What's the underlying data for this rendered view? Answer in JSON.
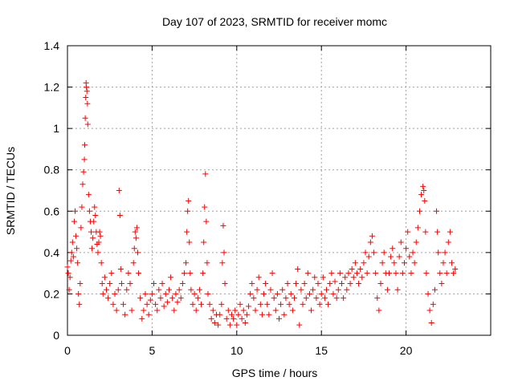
{
  "chart_data": {
    "type": "scatter",
    "title": "Day 107 of 2023, SRMTID for receiver momc",
    "xlabel": "GPS time / hours",
    "ylabel": "SRMTID / TECUs",
    "xlim": [
      0,
      25
    ],
    "ylim": [
      0,
      1.4
    ],
    "xticks": [
      0,
      5,
      10,
      15,
      20
    ],
    "yticks": [
      0,
      0.2,
      0.4,
      0.6,
      0.8,
      1,
      1.2,
      1.4
    ],
    "xtick_labels": [
      "0",
      "5",
      "10",
      "15",
      "20"
    ],
    "ytick_labels": [
      "0",
      "0.2",
      "0.4",
      "0.6",
      "0.8",
      "1",
      "1.2",
      "1.4"
    ],
    "grid": true,
    "marker": "+",
    "marker_color": "#ff0000",
    "series": [
      {
        "name": "SRMTID",
        "points": [
          [
            0.0,
            0.33
          ],
          [
            0.05,
            0.3
          ],
          [
            0.1,
            0.22
          ],
          [
            0.15,
            0.28
          ],
          [
            0.2,
            0.36
          ],
          [
            0.25,
            0.4
          ],
          [
            0.3,
            0.45
          ],
          [
            0.35,
            0.38
          ],
          [
            0.4,
            0.55
          ],
          [
            0.45,
            0.6
          ],
          [
            0.5,
            0.48
          ],
          [
            0.55,
            0.42
          ],
          [
            0.6,
            0.35
          ],
          [
            0.65,
            0.2
          ],
          [
            0.7,
            0.15
          ],
          [
            0.75,
            0.25
          ],
          [
            0.8,
            0.52
          ],
          [
            0.85,
            0.62
          ],
          [
            0.9,
            0.73
          ],
          [
            0.95,
            0.79
          ],
          [
            1.0,
            0.85
          ],
          [
            1.02,
            0.92
          ],
          [
            1.05,
            1.05
          ],
          [
            1.08,
            1.15
          ],
          [
            1.1,
            1.22
          ],
          [
            1.12,
            1.2
          ],
          [
            1.15,
            1.18
          ],
          [
            1.18,
            1.12
          ],
          [
            1.2,
            1.02
          ],
          [
            1.25,
            0.68
          ],
          [
            1.3,
            0.6
          ],
          [
            1.35,
            0.55
          ],
          [
            1.4,
            0.5
          ],
          [
            1.45,
            0.42
          ],
          [
            1.5,
            0.47
          ],
          [
            1.55,
            0.55
          ],
          [
            1.6,
            0.62
          ],
          [
            1.65,
            0.58
          ],
          [
            1.7,
            0.5
          ],
          [
            1.75,
            0.44
          ],
          [
            1.8,
            0.4
          ],
          [
            1.85,
            0.45
          ],
          [
            1.9,
            0.5
          ],
          [
            1.95,
            0.48
          ],
          [
            2.0,
            0.35
          ],
          [
            2.05,
            0.25
          ],
          [
            2.1,
            0.2
          ],
          [
            2.2,
            0.28
          ],
          [
            2.3,
            0.22
          ],
          [
            2.4,
            0.18
          ],
          [
            2.5,
            0.25
          ],
          [
            2.6,
            0.3
          ],
          [
            2.7,
            0.15
          ],
          [
            2.8,
            0.2
          ],
          [
            2.9,
            0.12
          ],
          [
            3.0,
            0.22
          ],
          [
            3.05,
            0.7
          ],
          [
            3.1,
            0.58
          ],
          [
            3.15,
            0.32
          ],
          [
            3.2,
            0.25
          ],
          [
            3.3,
            0.15
          ],
          [
            3.4,
            0.1
          ],
          [
            3.5,
            0.22
          ],
          [
            3.6,
            0.3
          ],
          [
            3.7,
            0.25
          ],
          [
            3.8,
            0.12
          ],
          [
            3.9,
            0.35
          ],
          [
            3.95,
            0.42
          ],
          [
            4.0,
            0.5
          ],
          [
            4.05,
            0.47
          ],
          [
            4.1,
            0.52
          ],
          [
            4.15,
            0.4
          ],
          [
            4.2,
            0.3
          ],
          [
            4.3,
            0.18
          ],
          [
            4.4,
            0.08
          ],
          [
            4.5,
            0.12
          ],
          [
            4.6,
            0.2
          ],
          [
            4.7,
            0.15
          ],
          [
            4.8,
            0.1
          ],
          [
            4.9,
            0.17
          ],
          [
            5.0,
            0.2
          ],
          [
            5.1,
            0.25
          ],
          [
            5.2,
            0.15
          ],
          [
            5.3,
            0.12
          ],
          [
            5.4,
            0.22
          ],
          [
            5.5,
            0.18
          ],
          [
            5.6,
            0.25
          ],
          [
            5.7,
            0.14
          ],
          [
            5.8,
            0.2
          ],
          [
            5.9,
            0.16
          ],
          [
            6.0,
            0.22
          ],
          [
            6.1,
            0.28
          ],
          [
            6.2,
            0.18
          ],
          [
            6.3,
            0.12
          ],
          [
            6.4,
            0.2
          ],
          [
            6.5,
            0.16
          ],
          [
            6.6,
            0.22
          ],
          [
            6.7,
            0.18
          ],
          [
            6.8,
            0.25
          ],
          [
            6.9,
            0.3
          ],
          [
            7.0,
            0.35
          ],
          [
            7.05,
            0.5
          ],
          [
            7.1,
            0.6
          ],
          [
            7.15,
            0.65
          ],
          [
            7.2,
            0.45
          ],
          [
            7.25,
            0.3
          ],
          [
            7.3,
            0.22
          ],
          [
            7.4,
            0.15
          ],
          [
            7.5,
            0.2
          ],
          [
            7.6,
            0.12
          ],
          [
            7.7,
            0.18
          ],
          [
            7.8,
            0.22
          ],
          [
            7.9,
            0.15
          ],
          [
            8.0,
            0.3
          ],
          [
            8.05,
            0.45
          ],
          [
            8.1,
            0.62
          ],
          [
            8.15,
            0.78
          ],
          [
            8.2,
            0.55
          ],
          [
            8.25,
            0.35
          ],
          [
            8.3,
            0.2
          ],
          [
            8.4,
            0.15
          ],
          [
            8.5,
            0.08
          ],
          [
            8.6,
            0.12
          ],
          [
            8.7,
            0.06
          ],
          [
            8.8,
            0.1
          ],
          [
            8.9,
            0.05
          ],
          [
            9.0,
            0.1
          ],
          [
            9.1,
            0.15
          ],
          [
            9.15,
            0.35
          ],
          [
            9.2,
            0.53
          ],
          [
            9.25,
            0.4
          ],
          [
            9.3,
            0.25
          ],
          [
            9.4,
            0.08
          ],
          [
            9.5,
            0.12
          ],
          [
            9.6,
            0.05
          ],
          [
            9.7,
            0.1
          ],
          [
            9.8,
            0.08
          ],
          [
            9.9,
            0.12
          ],
          [
            10.0,
            0.05
          ],
          [
            10.1,
            0.1
          ],
          [
            10.2,
            0.15
          ],
          [
            10.3,
            0.08
          ],
          [
            10.4,
            0.12
          ],
          [
            10.5,
            0.06
          ],
          [
            10.6,
            0.1
          ],
          [
            10.7,
            0.14
          ],
          [
            10.8,
            0.2
          ],
          [
            10.9,
            0.25
          ],
          [
            11.0,
            0.18
          ],
          [
            11.1,
            0.12
          ],
          [
            11.2,
            0.22
          ],
          [
            11.3,
            0.28
          ],
          [
            11.4,
            0.15
          ],
          [
            11.5,
            0.1
          ],
          [
            11.6,
            0.2
          ],
          [
            11.7,
            0.25
          ],
          [
            11.8,
            0.15
          ],
          [
            11.9,
            0.1
          ],
          [
            12.0,
            0.22
          ],
          [
            12.1,
            0.3
          ],
          [
            12.2,
            0.18
          ],
          [
            12.3,
            0.12
          ],
          [
            12.4,
            0.2
          ],
          [
            12.5,
            0.08
          ],
          [
            12.6,
            0.15
          ],
          [
            12.7,
            0.22
          ],
          [
            12.8,
            0.1
          ],
          [
            12.9,
            0.18
          ],
          [
            13.0,
            0.25
          ],
          [
            13.1,
            0.15
          ],
          [
            13.2,
            0.2
          ],
          [
            13.3,
            0.12
          ],
          [
            13.4,
            0.18
          ],
          [
            13.5,
            0.25
          ],
          [
            13.6,
            0.32
          ],
          [
            13.7,
            0.05
          ],
          [
            13.8,
            0.22
          ],
          [
            13.9,
            0.15
          ],
          [
            14.0,
            0.25
          ],
          [
            14.1,
            0.18
          ],
          [
            14.2,
            0.3
          ],
          [
            14.3,
            0.2
          ],
          [
            14.4,
            0.12
          ],
          [
            14.5,
            0.22
          ],
          [
            14.6,
            0.28
          ],
          [
            14.7,
            0.18
          ],
          [
            14.8,
            0.25
          ],
          [
            14.9,
            0.15
          ],
          [
            15.0,
            0.2
          ],
          [
            15.1,
            0.28
          ],
          [
            15.2,
            0.18
          ],
          [
            15.3,
            0.22
          ],
          [
            15.4,
            0.15
          ],
          [
            15.5,
            0.25
          ],
          [
            15.6,
            0.3
          ],
          [
            15.7,
            0.2
          ],
          [
            15.8,
            0.26
          ],
          [
            15.9,
            0.18
          ],
          [
            16.0,
            0.22
          ],
          [
            16.1,
            0.3
          ],
          [
            16.2,
            0.25
          ],
          [
            16.3,
            0.18
          ],
          [
            16.4,
            0.28
          ],
          [
            16.5,
            0.22
          ],
          [
            16.6,
            0.3
          ],
          [
            16.7,
            0.25
          ],
          [
            16.8,
            0.32
          ],
          [
            16.9,
            0.28
          ],
          [
            17.0,
            0.35
          ],
          [
            17.1,
            0.3
          ],
          [
            17.2,
            0.25
          ],
          [
            17.3,
            0.32
          ],
          [
            17.4,
            0.28
          ],
          [
            17.5,
            0.35
          ],
          [
            17.6,
            0.4
          ],
          [
            17.7,
            0.3
          ],
          [
            17.8,
            0.38
          ],
          [
            17.9,
            0.45
          ],
          [
            18.0,
            0.48
          ],
          [
            18.1,
            0.4
          ],
          [
            18.2,
            0.3
          ],
          [
            18.3,
            0.18
          ],
          [
            18.4,
            0.12
          ],
          [
            18.5,
            0.25
          ],
          [
            18.6,
            0.35
          ],
          [
            18.7,
            0.4
          ],
          [
            18.8,
            0.3
          ],
          [
            18.9,
            0.22
          ],
          [
            19.0,
            0.3
          ],
          [
            19.1,
            0.38
          ],
          [
            19.2,
            0.42
          ],
          [
            19.3,
            0.35
          ],
          [
            19.4,
            0.3
          ],
          [
            19.5,
            0.22
          ],
          [
            19.6,
            0.38
          ],
          [
            19.7,
            0.45
          ],
          [
            19.8,
            0.3
          ],
          [
            19.9,
            0.35
          ],
          [
            20.0,
            0.42
          ],
          [
            20.1,
            0.5
          ],
          [
            20.2,
            0.38
          ],
          [
            20.3,
            0.3
          ],
          [
            20.4,
            0.4
          ],
          [
            20.5,
            0.35
          ],
          [
            20.6,
            0.45
          ],
          [
            20.7,
            0.52
          ],
          [
            20.8,
            0.6
          ],
          [
            20.9,
            0.68
          ],
          [
            21.0,
            0.72
          ],
          [
            21.05,
            0.7
          ],
          [
            21.1,
            0.65
          ],
          [
            21.15,
            0.5
          ],
          [
            21.2,
            0.3
          ],
          [
            21.3,
            0.2
          ],
          [
            21.4,
            0.12
          ],
          [
            21.5,
            0.06
          ],
          [
            21.6,
            0.15
          ],
          [
            21.7,
            0.22
          ],
          [
            21.8,
            0.6
          ],
          [
            21.85,
            0.5
          ],
          [
            21.9,
            0.4
          ],
          [
            22.0,
            0.3
          ],
          [
            22.1,
            0.25
          ],
          [
            22.2,
            0.35
          ],
          [
            22.3,
            0.4
          ],
          [
            22.4,
            0.3
          ],
          [
            22.5,
            0.45
          ],
          [
            22.6,
            0.5
          ],
          [
            22.7,
            0.35
          ],
          [
            22.8,
            0.3
          ],
          [
            22.9,
            0.32
          ]
        ]
      }
    ]
  }
}
